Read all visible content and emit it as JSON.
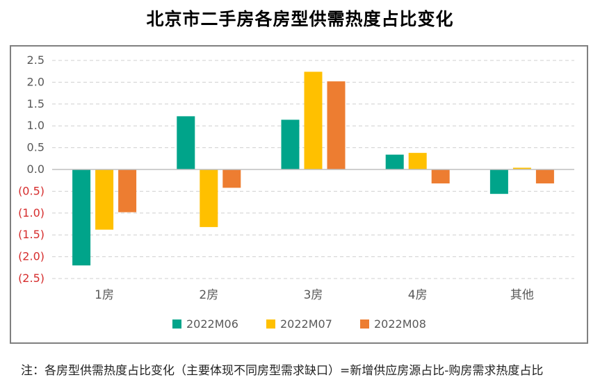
{
  "title": "北京市二手房各房型供需热度占比变化",
  "note": "注：各房型供需热度占比变化（主要体现不同房型需求缺口）=新增供应房源占比-购房需求热度占比",
  "colors": {
    "positive_tick": "#595959",
    "negative_tick": "#d62d2d",
    "gridline": "#cfcfcf",
    "axis": "#bfbfbf"
  },
  "chart_data": {
    "type": "bar",
    "title": "北京市二手房各房型供需热度占比变化",
    "categories": [
      "1房",
      "2房",
      "3房",
      "4房",
      "其他"
    ],
    "series": [
      {
        "name": "2022M06",
        "color": "#00a48a",
        "values": [
          -2.2,
          1.22,
          1.14,
          0.34,
          -0.56
        ]
      },
      {
        "name": "2022M07",
        "color": "#ffc000",
        "values": [
          -1.38,
          -1.32,
          2.24,
          0.38,
          0.04
        ]
      },
      {
        "name": "2022M08",
        "color": "#ed7d31",
        "values": [
          -0.98,
          -0.42,
          2.02,
          -0.32,
          -0.32
        ]
      }
    ],
    "ylim": [
      -2.5,
      2.5
    ],
    "yticks": [
      2.5,
      2.0,
      1.5,
      1.0,
      0.5,
      0.0,
      -0.5,
      -1.0,
      -1.5,
      -2.0,
      -2.5
    ],
    "ytick_labels": [
      "2.5",
      "2.0",
      "1.5",
      "1.0",
      "0.5",
      "0.0",
      "(0.5)",
      "(1.0)",
      "(1.5)",
      "(2.0)",
      "(2.5)"
    ],
    "grid": true,
    "legend_position": "bottom"
  }
}
